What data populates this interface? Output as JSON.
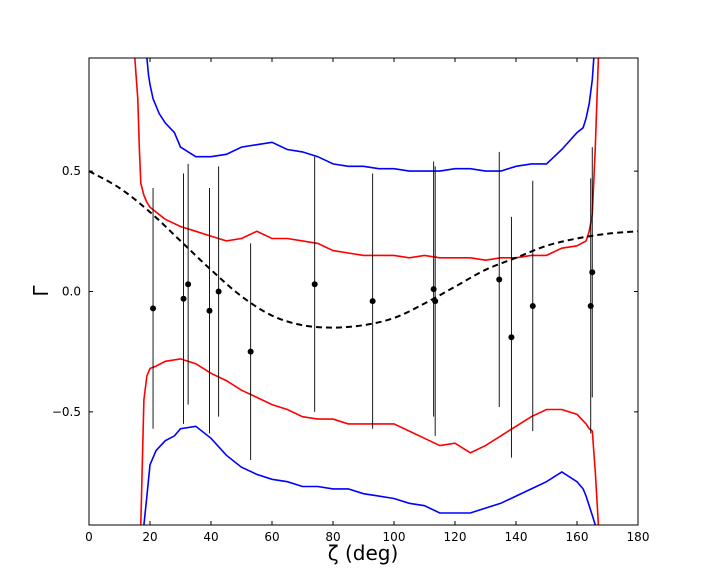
{
  "chart_data": {
    "type": "scatter",
    "title": "",
    "xlabel": "ζ (deg)",
    "ylabel": "Γ",
    "xlim": [
      0,
      180
    ],
    "ylim": [
      -0.97,
      0.97
    ],
    "xticks": [
      0,
      20,
      40,
      60,
      80,
      100,
      120,
      140,
      160,
      180
    ],
    "yticks": [
      -0.5,
      0.0,
      0.5
    ],
    "xtick_labels": [
      "0",
      "20",
      "40",
      "60",
      "80",
      "100",
      "120",
      "140",
      "160",
      "180"
    ],
    "ytick_labels": [
      "−0.5",
      "0.0",
      "0.5"
    ],
    "grid": false,
    "legend": "none",
    "colors": {
      "points": "#000000",
      "errorbars": "#000000",
      "model": "#000000",
      "bound_inner": "#ff0000",
      "bound_outer": "#0000ff"
    },
    "points": [
      {
        "x": 21,
        "y": -0.07,
        "yerr": 0.5
      },
      {
        "x": 31,
        "y": -0.03,
        "yerr": 0.52
      },
      {
        "x": 32.5,
        "y": 0.03,
        "yerr": 0.5
      },
      {
        "x": 39.5,
        "y": -0.08,
        "yerr": 0.51
      },
      {
        "x": 42.5,
        "y": 0.0,
        "yerr": 0.52
      },
      {
        "x": 53,
        "y": -0.25,
        "yerr": 0.45
      },
      {
        "x": 74,
        "y": 0.03,
        "yerr": 0.53
      },
      {
        "x": 93,
        "y": -0.04,
        "yerr": 0.53
      },
      {
        "x": 113,
        "y": 0.01,
        "yerr": 0.53
      },
      {
        "x": 113.5,
        "y": -0.04,
        "yerr": 0.56
      },
      {
        "x": 134.5,
        "y": 0.05,
        "yerr": 0.53
      },
      {
        "x": 138.5,
        "y": -0.19,
        "yerr": 0.5
      },
      {
        "x": 145.5,
        "y": -0.06,
        "yerr": 0.52
      },
      {
        "x": 164.5,
        "y": -0.06,
        "yerr": 0.53
      },
      {
        "x": 165,
        "y": 0.08,
        "yerr": 0.52
      }
    ],
    "model_curve": {
      "style": "dashed",
      "x": [
        0,
        10,
        20,
        30,
        40,
        50,
        60,
        70,
        80,
        90,
        100,
        110,
        120,
        130,
        140,
        150,
        160,
        170,
        180
      ],
      "y": [
        0.5,
        0.43,
        0.33,
        0.21,
        0.09,
        -0.02,
        -0.1,
        -0.14,
        -0.15,
        -0.14,
        -0.11,
        -0.05,
        0.02,
        0.09,
        0.14,
        0.19,
        0.22,
        0.24,
        0.25
      ]
    },
    "bounds": [
      {
        "color": "red",
        "x": [
          15,
          16,
          16.5,
          17,
          18,
          19,
          20,
          22,
          25,
          30,
          35,
          40,
          45,
          50,
          55,
          60,
          65,
          70,
          75,
          80,
          85,
          90,
          95,
          100,
          105,
          110,
          115,
          120,
          125,
          130,
          135,
          140,
          145,
          150,
          155,
          160,
          163,
          164,
          165,
          166,
          167
        ],
        "y": [
          0.97,
          0.8,
          0.6,
          0.45,
          0.4,
          0.37,
          0.35,
          0.33,
          0.3,
          0.27,
          0.25,
          0.23,
          0.21,
          0.22,
          0.25,
          0.22,
          0.22,
          0.21,
          0.2,
          0.17,
          0.16,
          0.15,
          0.15,
          0.15,
          0.14,
          0.15,
          0.14,
          0.14,
          0.14,
          0.13,
          0.14,
          0.14,
          0.15,
          0.15,
          0.18,
          0.19,
          0.21,
          0.25,
          0.32,
          0.6,
          0.97
        ]
      },
      {
        "color": "red",
        "x": [
          17,
          17.5,
          18,
          19,
          20,
          22,
          25,
          30,
          35,
          40,
          45,
          50,
          55,
          60,
          65,
          70,
          75,
          80,
          85,
          90,
          95,
          100,
          105,
          110,
          115,
          120,
          125,
          130,
          135,
          140,
          145,
          150,
          155,
          160,
          163,
          164,
          165,
          166,
          167
        ],
        "y": [
          -0.97,
          -0.7,
          -0.45,
          -0.35,
          -0.32,
          -0.31,
          -0.29,
          -0.28,
          -0.3,
          -0.34,
          -0.37,
          -0.41,
          -0.44,
          -0.47,
          -0.49,
          -0.52,
          -0.53,
          -0.53,
          -0.55,
          -0.55,
          -0.55,
          -0.55,
          -0.58,
          -0.61,
          -0.64,
          -0.63,
          -0.67,
          -0.64,
          -0.6,
          -0.56,
          -0.52,
          -0.49,
          -0.49,
          -0.51,
          -0.55,
          -0.57,
          -0.58,
          -0.75,
          -0.97
        ]
      },
      {
        "color": "blue",
        "x": [
          19,
          19.5,
          20,
          21,
          23,
          25,
          28,
          30,
          35,
          40,
          45,
          50,
          55,
          60,
          65,
          70,
          75,
          80,
          85,
          90,
          95,
          100,
          105,
          110,
          115,
          120,
          125,
          130,
          135,
          140,
          145,
          150,
          155,
          160,
          162,
          163,
          164,
          165,
          165.5
        ],
        "y": [
          0.97,
          0.9,
          0.86,
          0.8,
          0.74,
          0.7,
          0.66,
          0.6,
          0.56,
          0.56,
          0.57,
          0.6,
          0.61,
          0.62,
          0.59,
          0.58,
          0.56,
          0.53,
          0.52,
          0.52,
          0.51,
          0.51,
          0.5,
          0.5,
          0.5,
          0.51,
          0.51,
          0.5,
          0.5,
          0.52,
          0.53,
          0.53,
          0.59,
          0.66,
          0.68,
          0.72,
          0.78,
          0.88,
          0.97
        ]
      },
      {
        "color": "blue",
        "x": [
          18,
          19,
          20,
          22,
          25,
          28,
          30,
          35,
          40,
          45,
          50,
          55,
          60,
          65,
          70,
          75,
          80,
          85,
          90,
          95,
          100,
          105,
          110,
          115,
          120,
          125,
          130,
          135,
          140,
          145,
          150,
          155,
          160,
          162,
          163,
          164,
          165,
          166
        ],
        "y": [
          -0.97,
          -0.85,
          -0.72,
          -0.66,
          -0.62,
          -0.6,
          -0.57,
          -0.56,
          -0.61,
          -0.68,
          -0.73,
          -0.76,
          -0.78,
          -0.79,
          -0.81,
          -0.81,
          -0.82,
          -0.82,
          -0.84,
          -0.85,
          -0.86,
          -0.88,
          -0.89,
          -0.92,
          -0.92,
          -0.92,
          -0.9,
          -0.88,
          -0.85,
          -0.82,
          -0.79,
          -0.75,
          -0.79,
          -0.82,
          -0.85,
          -0.89,
          -0.93,
          -0.97
        ]
      }
    ]
  }
}
